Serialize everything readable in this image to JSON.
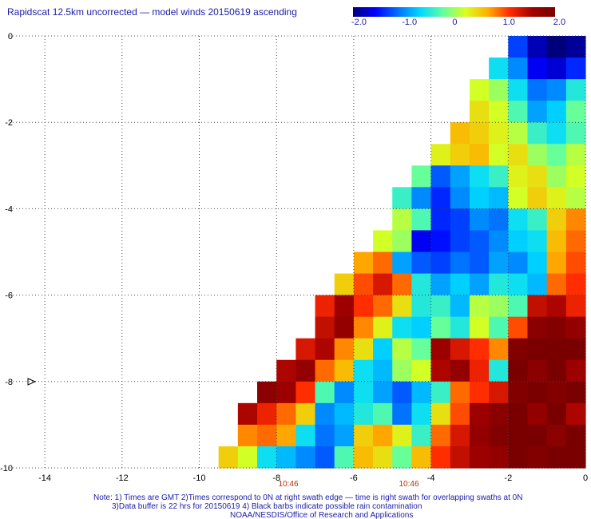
{
  "title": "Rapidscat 12.5km uncorrected — model winds 20150619 ascending",
  "colorbar": {
    "ticks": [
      "-2.0",
      "-1.0",
      "0",
      "1.0",
      "2.0"
    ],
    "min": -2,
    "max": 2,
    "colors": [
      "#00007a",
      "#0000ff",
      "#0070ff",
      "#00d8ff",
      "#60ffa0",
      "#d8ff20",
      "#ffb000",
      "#ff2a00",
      "#a00000",
      "#7a0000"
    ]
  },
  "chart_data": {
    "type": "heatmap",
    "title": "Rapidscat 12.5km uncorrected — model winds 20150619 ascending",
    "x_ticks": [
      "-14",
      "-12",
      "-10",
      "-8",
      "-6",
      "-4",
      "-2",
      "0"
    ],
    "y_ticks": [
      "0",
      "-2",
      "-4",
      "-6",
      "-8",
      "-10"
    ],
    "xlim": [
      -14.9,
      0
    ],
    "ylim": [
      -10,
      0
    ],
    "grid": true,
    "lon_start": -10,
    "lat_start": 0,
    "cell_deg": 0.5,
    "time_labels": [
      "10:46",
      "10:46"
    ],
    "values": [
      [
        null,
        null,
        null,
        null,
        null,
        null,
        null,
        null,
        null,
        null,
        null,
        null,
        null,
        null,
        null,
        null,
        -1.3,
        -1.8,
        -2.0,
        -1.9
      ],
      [
        null,
        null,
        null,
        null,
        null,
        null,
        null,
        null,
        null,
        null,
        null,
        null,
        null,
        null,
        null,
        -0.6,
        -1.0,
        -1.6,
        -1.7,
        -1.4
      ],
      [
        null,
        null,
        null,
        null,
        null,
        null,
        null,
        null,
        null,
        null,
        null,
        null,
        null,
        null,
        0.2,
        0.0,
        -0.6,
        -1.1,
        -1.0,
        -0.5
      ],
      [
        null,
        null,
        null,
        null,
        null,
        null,
        null,
        null,
        null,
        null,
        null,
        null,
        null,
        null,
        0.4,
        0.2,
        -0.3,
        -0.9,
        -0.7,
        -0.2
      ],
      [
        null,
        null,
        null,
        null,
        null,
        null,
        null,
        null,
        null,
        null,
        null,
        null,
        null,
        0.6,
        0.5,
        0.3,
        0.1,
        -0.4,
        -0.6,
        -0.3
      ],
      [
        null,
        null,
        null,
        null,
        null,
        null,
        null,
        null,
        null,
        null,
        null,
        null,
        0.3,
        0.5,
        0.6,
        0.2,
        0.4,
        0.0,
        -0.2,
        0.1
      ],
      [
        null,
        null,
        null,
        null,
        null,
        null,
        null,
        null,
        null,
        null,
        null,
        -0.2,
        -1.2,
        -0.9,
        -0.6,
        -0.4,
        0.3,
        0.4,
        0.0,
        0.2
      ],
      [
        null,
        null,
        null,
        null,
        null,
        null,
        null,
        null,
        null,
        null,
        -0.4,
        -1.0,
        -1.4,
        -1.0,
        -0.7,
        -0.8,
        0.2,
        0.5,
        0.3,
        0.1
      ],
      [
        null,
        null,
        null,
        null,
        null,
        null,
        null,
        null,
        null,
        null,
        0.1,
        -0.3,
        -1.4,
        -1.3,
        -1.0,
        -1.1,
        -0.6,
        -0.4,
        0.5,
        0.8
      ],
      [
        null,
        null,
        null,
        null,
        null,
        null,
        null,
        null,
        null,
        0.2,
        0.0,
        -1.6,
        -1.5,
        -1.3,
        -1.2,
        -1.0,
        -0.7,
        -0.6,
        0.6,
        0.9
      ],
      [
        null,
        null,
        null,
        null,
        null,
        null,
        null,
        null,
        0.7,
        0.9,
        -0.9,
        -1.2,
        -1.3,
        -1.1,
        -1.2,
        -0.9,
        -1.0,
        -0.7,
        0.7,
        1.0
      ],
      [
        null,
        null,
        null,
        null,
        null,
        null,
        null,
        0.5,
        1.0,
        1.3,
        0.9,
        -0.5,
        -0.9,
        -0.7,
        -0.9,
        -0.5,
        -0.6,
        -0.8,
        0.9,
        1.1
      ],
      [
        null,
        null,
        null,
        null,
        null,
        null,
        1.2,
        1.6,
        1.1,
        0.9,
        0.4,
        -0.5,
        -0.4,
        -0.8,
        0.1,
        0.0,
        -0.3,
        1.4,
        1.5,
        1.2
      ],
      [
        null,
        null,
        null,
        null,
        null,
        null,
        1.4,
        1.7,
        0.8,
        0.3,
        -0.6,
        -0.7,
        -0.2,
        -0.5,
        0.2,
        -0.3,
        1.0,
        1.8,
        1.9,
        1.7
      ],
      [
        null,
        null,
        null,
        null,
        null,
        1.3,
        1.5,
        0.8,
        0.4,
        -0.7,
        0.1,
        -0.2,
        1.6,
        1.3,
        1.1,
        0.8,
        1.9,
        2.0,
        2.0,
        2.0
      ],
      [
        null,
        null,
        null,
        null,
        1.5,
        1.7,
        0.9,
        0.6,
        -0.6,
        -0.8,
        0.0,
        0.2,
        1.5,
        1.7,
        1.2,
        -0.5,
        2.0,
        1.8,
        2.0,
        1.6
      ],
      [
        null,
        null,
        null,
        1.8,
        1.6,
        1.1,
        -0.3,
        -1.0,
        -0.6,
        -0.9,
        -1.2,
        -0.8,
        -0.4,
        0.9,
        1.1,
        1.3,
        1.9,
        2.0,
        1.9,
        2.0
      ],
      [
        null,
        null,
        1.5,
        1.2,
        0.9,
        0.5,
        -1.0,
        -0.8,
        -0.5,
        -0.3,
        -1.1,
        -0.6,
        0.4,
        1.0,
        1.6,
        1.8,
        2.0,
        1.7,
        2.0,
        1.5
      ],
      [
        null,
        null,
        0.8,
        0.9,
        0.7,
        -0.6,
        -1.1,
        -0.9,
        0.5,
        0.7,
        0.3,
        -0.4,
        0.9,
        1.3,
        1.7,
        1.9,
        2.0,
        2.0,
        1.8,
        2.0
      ],
      [
        null,
        0.5,
        0.2,
        -0.6,
        -0.8,
        -1.0,
        -1.2,
        -0.3,
        0.6,
        0.4,
        -0.2,
        0.6,
        1.1,
        1.4,
        1.6,
        1.7,
        2.0,
        1.9,
        2.0,
        2.0
      ]
    ]
  },
  "notes": [
    "Note: 1) Times are GMT 2)Times correspond to 0N at right swath edge — time is right swath for overlapping swaths at 0N",
    "3)Data buffer is 22 hrs for 20150619 4) Black barbs indicate possible rain contamination",
    "NOAA/NESDIS/Office of Research and Applications"
  ],
  "colors": {
    "text": "#1c1ca8",
    "time_label": "#b0300c",
    "grid": "#444444"
  }
}
